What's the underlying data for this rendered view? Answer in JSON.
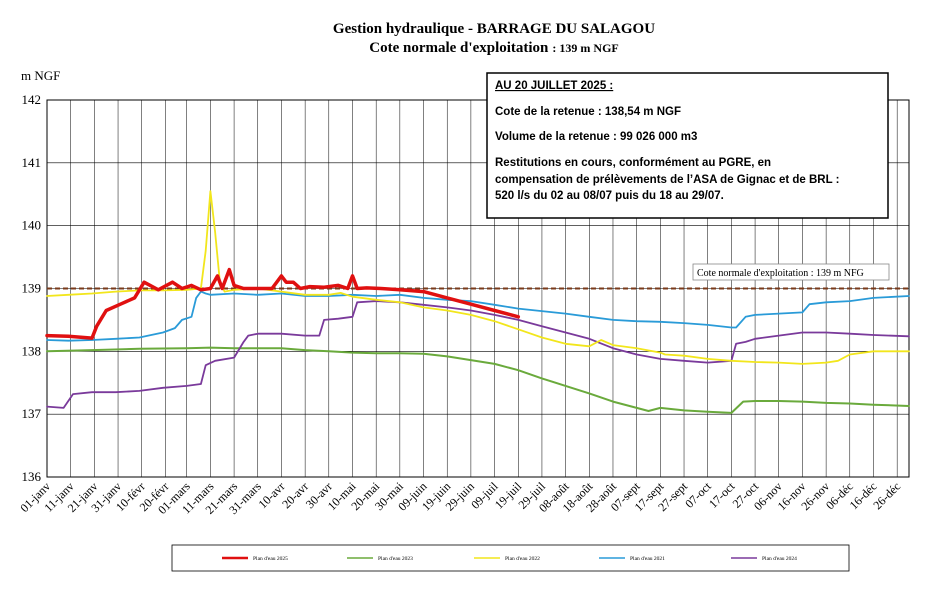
{
  "chart_data": {
    "type": "line",
    "title": "Gestion hydraulique - BARRAGE DU SALAGOU",
    "subtitle_main": "Cote normale d'exploitation",
    "subtitle_value": ": 139 m NGF",
    "ylabel": "m NGF",
    "ylim": [
      136,
      142
    ],
    "yticks": [
      "136",
      "137",
      "138",
      "139",
      "140",
      "141",
      "142"
    ],
    "xlim": [
      1,
      365
    ],
    "grid": true,
    "legend_position": "bottom",
    "x_categories": [
      "01-janv",
      "11-janv",
      "21-janv",
      "31-janv",
      "10-févr",
      "20-févr",
      "01-mars",
      "11-mars",
      "21-mars",
      "31-mars",
      "10-avr",
      "20-avr",
      "30-avr",
      "10-mai",
      "20-mai",
      "30-mai",
      "09-juin",
      "19-juin",
      "29-juin",
      "09-juil",
      "19-juil",
      "29-juil",
      "08-août",
      "18-août",
      "28-août",
      "07-sept",
      "17-sept",
      "27-sept",
      "07-oct",
      "17-oct",
      "27-oct",
      "06-nov",
      "16-nov",
      "26-nov",
      "06-déc",
      "16-déc",
      "26-déc"
    ],
    "x_category_days": [
      1,
      11,
      21,
      31,
      41,
      51,
      60,
      70,
      80,
      90,
      100,
      110,
      120,
      130,
      140,
      150,
      160,
      170,
      180,
      190,
      200,
      210,
      220,
      230,
      240,
      250,
      260,
      270,
      280,
      290,
      300,
      310,
      320,
      330,
      340,
      350,
      360
    ],
    "reference_line": {
      "value": 139,
      "label": "Cote normale d'exploitation : 139 m NFG",
      "color": "#7a3a1a"
    },
    "series": [
      {
        "name": "Plan d'eau 2025",
        "color": "#e01010",
        "width": 3.5,
        "x": [
          1,
          10,
          20,
          22,
          26,
          32,
          38,
          42,
          48,
          54,
          58,
          62,
          66,
          70,
          73,
          75,
          78,
          80,
          84,
          90,
          96,
          100,
          102,
          105,
          108,
          112,
          118,
          124,
          128,
          130,
          132,
          136,
          142,
          150,
          160,
          170,
          180,
          190,
          200
        ],
        "y": [
          138.25,
          138.24,
          138.21,
          138.4,
          138.65,
          138.75,
          138.85,
          139.1,
          138.98,
          139.1,
          139.0,
          139.05,
          138.98,
          139.0,
          139.2,
          139.0,
          139.3,
          139.05,
          139.0,
          139.0,
          139.0,
          139.2,
          139.1,
          139.1,
          139.0,
          139.03,
          139.02,
          139.05,
          139.0,
          139.2,
          139.0,
          139.01,
          139.0,
          138.98,
          138.95,
          138.85,
          138.75,
          138.65,
          138.55
        ]
      },
      {
        "name": "Plan d'eau 2023",
        "color": "#6aaa3c",
        "width": 2,
        "x": [
          1,
          20,
          40,
          60,
          70,
          80,
          90,
          100,
          110,
          120,
          130,
          140,
          150,
          160,
          170,
          180,
          190,
          200,
          210,
          220,
          230,
          240,
          250,
          255,
          260,
          270,
          280,
          290,
          295,
          300,
          310,
          320,
          330,
          340,
          350,
          365
        ],
        "y": [
          138.0,
          138.02,
          138.04,
          138.05,
          138.06,
          138.05,
          138.05,
          138.05,
          138.02,
          138.0,
          137.98,
          137.97,
          137.97,
          137.96,
          137.92,
          137.86,
          137.8,
          137.7,
          137.57,
          137.45,
          137.33,
          137.2,
          137.1,
          137.05,
          137.1,
          137.06,
          137.04,
          137.02,
          137.2,
          137.21,
          137.21,
          137.2,
          137.18,
          137.17,
          137.15,
          137.13
        ]
      },
      {
        "name": "Plan d'eau 2022",
        "color": "#f2e61c",
        "width": 1.8,
        "x": [
          1,
          10,
          20,
          30,
          40,
          50,
          60,
          66,
          68,
          70,
          72,
          74,
          76,
          80,
          90,
          100,
          110,
          120,
          125,
          130,
          140,
          150,
          160,
          170,
          180,
          190,
          200,
          210,
          220,
          230,
          235,
          240,
          250,
          260,
          262,
          270,
          280,
          290,
          300,
          310,
          320,
          330,
          335,
          340,
          350,
          365
        ],
        "y": [
          138.88,
          138.9,
          138.92,
          138.95,
          138.97,
          138.97,
          138.98,
          139.0,
          139.6,
          140.55,
          139.9,
          139.1,
          138.95,
          138.98,
          139.0,
          138.95,
          138.9,
          138.9,
          138.93,
          138.87,
          138.82,
          138.78,
          138.7,
          138.65,
          138.58,
          138.48,
          138.35,
          138.22,
          138.12,
          138.08,
          138.18,
          138.1,
          138.05,
          137.98,
          137.95,
          137.93,
          137.88,
          137.85,
          137.83,
          137.82,
          137.8,
          137.82,
          137.85,
          137.95,
          138.0,
          138.0
        ]
      },
      {
        "name": "Plan d'eau 2021",
        "color": "#2a9bd8",
        "width": 1.8,
        "x": [
          1,
          10,
          20,
          30,
          40,
          50,
          55,
          58,
          62,
          64,
          66,
          68,
          70,
          80,
          90,
          100,
          110,
          120,
          130,
          140,
          150,
          160,
          170,
          180,
          190,
          200,
          210,
          220,
          230,
          240,
          250,
          260,
          270,
          280,
          290,
          292,
          296,
          300,
          310,
          320,
          323,
          330,
          340,
          350,
          365
        ],
        "y": [
          138.18,
          138.17,
          138.18,
          138.2,
          138.22,
          138.3,
          138.37,
          138.5,
          138.55,
          138.85,
          138.95,
          138.92,
          138.9,
          138.92,
          138.9,
          138.92,
          138.88,
          138.88,
          138.9,
          138.88,
          138.9,
          138.85,
          138.82,
          138.8,
          138.74,
          138.68,
          138.64,
          138.6,
          138.55,
          138.5,
          138.48,
          138.47,
          138.45,
          138.42,
          138.38,
          138.38,
          138.55,
          138.58,
          138.6,
          138.62,
          138.75,
          138.78,
          138.8,
          138.85,
          138.88
        ]
      },
      {
        "name": "Plan d'eau 2024",
        "color": "#7a3a9b",
        "width": 1.8,
        "x": [
          1,
          8,
          12,
          20,
          30,
          40,
          50,
          60,
          66,
          68,
          72,
          80,
          84,
          86,
          90,
          100,
          110,
          116,
          118,
          124,
          130,
          132,
          140,
          150,
          160,
          170,
          180,
          190,
          200,
          210,
          220,
          230,
          240,
          250,
          260,
          270,
          280,
          290,
          292,
          296,
          300,
          310,
          320,
          330,
          340,
          350,
          365
        ],
        "y": [
          137.12,
          137.1,
          137.32,
          137.35,
          137.35,
          137.37,
          137.42,
          137.45,
          137.48,
          137.78,
          137.85,
          137.9,
          138.15,
          138.25,
          138.28,
          138.28,
          138.25,
          138.25,
          138.5,
          138.52,
          138.55,
          138.78,
          138.8,
          138.78,
          138.74,
          138.7,
          138.65,
          138.58,
          138.5,
          138.4,
          138.3,
          138.2,
          138.05,
          137.95,
          137.88,
          137.85,
          137.82,
          137.85,
          138.12,
          138.15,
          138.2,
          138.25,
          138.3,
          138.3,
          138.28,
          138.26,
          138.24
        ]
      }
    ]
  },
  "info_box": {
    "heading": "AU 20 JUILLET 2025 :",
    "line1": "Cote de la retenue : 138,54 m NGF",
    "line2": "Volume de la retenue : 99 026 000 m3",
    "line3": "Restitutions en cours, conformément au PGRE, en",
    "line4": "compensation de prélèvements de l’ASA de Gignac et de BRL :",
    "line5": "520 l/s du 02 au 08/07 puis du 18 au 29/07."
  }
}
